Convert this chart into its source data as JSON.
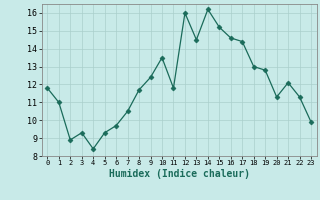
{
  "x": [
    0,
    1,
    2,
    3,
    4,
    5,
    6,
    7,
    8,
    9,
    10,
    11,
    12,
    13,
    14,
    15,
    16,
    17,
    18,
    19,
    20,
    21,
    22,
    23
  ],
  "y": [
    11.8,
    11.0,
    8.9,
    9.3,
    8.4,
    9.3,
    9.7,
    10.5,
    11.7,
    12.4,
    13.5,
    11.8,
    16.0,
    14.5,
    16.2,
    15.2,
    14.6,
    14.4,
    13.0,
    12.8,
    11.3,
    12.1,
    11.3,
    9.9
  ],
  "xlabel": "Humidex (Indice chaleur)",
  "line_color": "#1a6b5a",
  "marker": "D",
  "marker_size": 2.5,
  "bg_color": "#c8eae8",
  "grid_color": "#aacfcc",
  "ylim": [
    8,
    16.5
  ],
  "xlim": [
    -0.5,
    23.5
  ],
  "yticks": [
    8,
    9,
    10,
    11,
    12,
    13,
    14,
    15,
    16
  ],
  "xticks": [
    0,
    1,
    2,
    3,
    4,
    5,
    6,
    7,
    8,
    9,
    10,
    11,
    12,
    13,
    14,
    15,
    16,
    17,
    18,
    19,
    20,
    21,
    22,
    23
  ]
}
